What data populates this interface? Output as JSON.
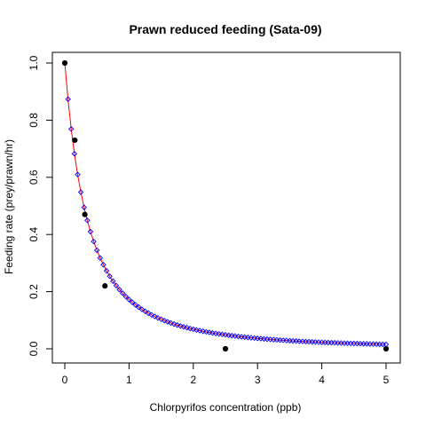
{
  "chart_data": {
    "type": "scatter",
    "title": "Prawn reduced feeding (Sata-09)",
    "xlabel": "Chlorpyrifos concentration (ppb)",
    "ylabel": "Feeding rate (prey/prawn/hr)",
    "xlim": [
      0,
      5
    ],
    "ylim": [
      0,
      1
    ],
    "x_ticks": [
      "0",
      "1",
      "2",
      "3",
      "4",
      "5"
    ],
    "y_ticks": [
      "0.0",
      "0.2",
      "0.4",
      "0.6",
      "0.8",
      "1.0"
    ],
    "grid": false,
    "legend": "none",
    "observed": {
      "marker": "filled-circle",
      "color": "#000000",
      "x": [
        0,
        0.156,
        0.312,
        0.625,
        2.5,
        5.0
      ],
      "y": [
        1.0,
        0.73,
        0.47,
        0.22,
        0.0,
        0.0
      ]
    },
    "fitted_curve": {
      "line_color": "#ff0000",
      "marker": "open-diamond",
      "marker_color": "#0000ff",
      "model": "y = 1 / (1 + 2.8*x + 2*x^2)",
      "x_range": [
        0,
        5
      ],
      "point_count": 101
    }
  }
}
